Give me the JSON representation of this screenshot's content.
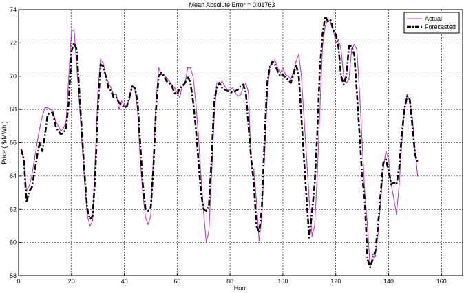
{
  "chart_data": {
    "type": "line",
    "title": "Mean Absolute Error = 0.01763",
    "xlabel": "Hour",
    "ylabel": "Price ( $/MWh )",
    "xlim": [
      0,
      168
    ],
    "ylim": [
      58,
      74
    ],
    "xticks": [
      0,
      20,
      40,
      60,
      80,
      100,
      120,
      140,
      160
    ],
    "yticks": [
      58,
      60,
      62,
      64,
      66,
      68,
      70,
      72,
      74
    ],
    "grid": true,
    "legend_position": "top-right",
    "series": [
      {
        "name": "Actual",
        "color": "#bf40bf",
        "style": "solid",
        "marker": "point",
        "points": [
          [
            1,
            65.6
          ],
          [
            2,
            64.8
          ],
          [
            3,
            63.1
          ],
          [
            4,
            63.4
          ],
          [
            5,
            64.0
          ],
          [
            6,
            65.0
          ],
          [
            7,
            66.0
          ],
          [
            8,
            66.9
          ],
          [
            9,
            67.6
          ],
          [
            10,
            68.1
          ],
          [
            11,
            68.1
          ],
          [
            12,
            68.0
          ],
          [
            13,
            67.9
          ],
          [
            14,
            67.3
          ],
          [
            15,
            67.0
          ],
          [
            16,
            66.7
          ],
          [
            17,
            66.9
          ],
          [
            18,
            67.3
          ],
          [
            19,
            70.0
          ],
          [
            20,
            72.7
          ],
          [
            21,
            72.8
          ],
          [
            22,
            70.5
          ],
          [
            23,
            68.5
          ],
          [
            24,
            66.0
          ],
          [
            25,
            63.6
          ],
          [
            26,
            61.6
          ],
          [
            27,
            61.0
          ],
          [
            28,
            61.3
          ],
          [
            29,
            65.0
          ],
          [
            30,
            69.0
          ],
          [
            31,
            71.0
          ],
          [
            32,
            70.8
          ],
          [
            33,
            70.0
          ],
          [
            34,
            69.6
          ],
          [
            35,
            69.3
          ],
          [
            36,
            68.9
          ],
          [
            37,
            68.9
          ],
          [
            38,
            68.0
          ],
          [
            39,
            68.5
          ],
          [
            40,
            68.2
          ],
          [
            41,
            68.3
          ],
          [
            42,
            68.6
          ],
          [
            43,
            69.4
          ],
          [
            44,
            69.2
          ],
          [
            45,
            68.0
          ],
          [
            46,
            65.0
          ],
          [
            47,
            63.0
          ],
          [
            48,
            61.5
          ],
          [
            49,
            61.1
          ],
          [
            50,
            61.6
          ],
          [
            51,
            65.0
          ],
          [
            52,
            68.5
          ],
          [
            53,
            70.5
          ],
          [
            54,
            70.1
          ],
          [
            55,
            70.1
          ],
          [
            56,
            69.9
          ],
          [
            57,
            69.7
          ],
          [
            58,
            69.5
          ],
          [
            59,
            69.3
          ],
          [
            60,
            69.0
          ],
          [
            61,
            68.7
          ],
          [
            62,
            69.5
          ],
          [
            63,
            69.6
          ],
          [
            64,
            70.5
          ],
          [
            65,
            70.5
          ],
          [
            66,
            70.0
          ],
          [
            67,
            68.5
          ],
          [
            68,
            66.5
          ],
          [
            69,
            64.0
          ],
          [
            70,
            61.8
          ],
          [
            71,
            60.0
          ],
          [
            72,
            60.7
          ],
          [
            73,
            64.0
          ],
          [
            74,
            67.5
          ],
          [
            75,
            69.6
          ],
          [
            76,
            69.5
          ],
          [
            77,
            69.7
          ],
          [
            78,
            69.4
          ],
          [
            79,
            69.2
          ],
          [
            80,
            69.2
          ],
          [
            81,
            69.3
          ],
          [
            82,
            69.0
          ],
          [
            83,
            68.8
          ],
          [
            84,
            68.9
          ],
          [
            85,
            69.3
          ],
          [
            86,
            69.6
          ],
          [
            87,
            69.0
          ],
          [
            88,
            64.6
          ],
          [
            89,
            64.4
          ],
          [
            90,
            62.5
          ],
          [
            91,
            60.1
          ],
          [
            92,
            61.5
          ],
          [
            93,
            65.0
          ],
          [
            94,
            68.5
          ],
          [
            95,
            70.6
          ],
          [
            96,
            70.7
          ],
          [
            97,
            71.0
          ],
          [
            98,
            70.5
          ],
          [
            99,
            70.2
          ],
          [
            100,
            70.5
          ],
          [
            101,
            70.1
          ],
          [
            102,
            70.0
          ],
          [
            103,
            69.8
          ],
          [
            104,
            70.3
          ],
          [
            105,
            70.9
          ],
          [
            106,
            71.3
          ],
          [
            107,
            70.0
          ],
          [
            108,
            67.5
          ],
          [
            109,
            65.0
          ],
          [
            110,
            62.5
          ],
          [
            111,
            60.4
          ],
          [
            112,
            61.0
          ],
          [
            113,
            64.0
          ],
          [
            114,
            68.0
          ],
          [
            115,
            71.8
          ],
          [
            116,
            73.0
          ],
          [
            117,
            73.4
          ],
          [
            118,
            73.3
          ],
          [
            119,
            72.8
          ],
          [
            120,
            72.0
          ],
          [
            121,
            72.2
          ],
          [
            122,
            71.6
          ],
          [
            123,
            70.0
          ],
          [
            124,
            69.6
          ],
          [
            125,
            69.8
          ],
          [
            126,
            71.6
          ],
          [
            127,
            71.9
          ],
          [
            128,
            71.6
          ],
          [
            129,
            69.0
          ],
          [
            130,
            66.0
          ],
          [
            131,
            63.0
          ],
          [
            132,
            61.0
          ],
          [
            133,
            58.5
          ],
          [
            134,
            59.3
          ],
          [
            135,
            59.2
          ],
          [
            136,
            60.5
          ],
          [
            137,
            62.5
          ],
          [
            138,
            64.5
          ],
          [
            139,
            65.5
          ],
          [
            140,
            65.0
          ],
          [
            141,
            63.5
          ],
          [
            142,
            62.6
          ],
          [
            143,
            61.7
          ],
          [
            144,
            63.5
          ],
          [
            145,
            66.0
          ],
          [
            146,
            68.0
          ],
          [
            147,
            68.9
          ],
          [
            148,
            68.5
          ],
          [
            149,
            67.5
          ],
          [
            150,
            65.5
          ],
          [
            151,
            64.0
          ]
        ]
      },
      {
        "name": "Forecasted",
        "color": "#000000",
        "style": "dashdot",
        "marker": "none",
        "points": [
          [
            1,
            65.6
          ],
          [
            2,
            65.0
          ],
          [
            3,
            62.4
          ],
          [
            4,
            63.1
          ],
          [
            5,
            63.3
          ],
          [
            6,
            64.2
          ],
          [
            7,
            65.2
          ],
          [
            8,
            66.0
          ],
          [
            9,
            65.5
          ],
          [
            10,
            66.5
          ],
          [
            11,
            67.7
          ],
          [
            12,
            67.8
          ],
          [
            13,
            67.8
          ],
          [
            14,
            67.0
          ],
          [
            15,
            66.7
          ],
          [
            16,
            66.5
          ],
          [
            17,
            66.6
          ],
          [
            18,
            66.9
          ],
          [
            19,
            68.5
          ],
          [
            20,
            71.5
          ],
          [
            21,
            72.0
          ],
          [
            22,
            71.6
          ],
          [
            23,
            69.0
          ],
          [
            24,
            66.5
          ],
          [
            25,
            64.0
          ],
          [
            26,
            62.0
          ],
          [
            27,
            61.4
          ],
          [
            28,
            61.6
          ],
          [
            29,
            64.0
          ],
          [
            30,
            68.0
          ],
          [
            31,
            70.7
          ],
          [
            32,
            70.6
          ],
          [
            33,
            70.0
          ],
          [
            34,
            69.3
          ],
          [
            35,
            69.1
          ],
          [
            36,
            68.7
          ],
          [
            37,
            68.7
          ],
          [
            38,
            68.4
          ],
          [
            39,
            68.3
          ],
          [
            40,
            68.1
          ],
          [
            41,
            68.2
          ],
          [
            42,
            68.8
          ],
          [
            43,
            69.4
          ],
          [
            44,
            69.3
          ],
          [
            45,
            68.5
          ],
          [
            46,
            66.0
          ],
          [
            47,
            63.5
          ],
          [
            48,
            62.0
          ],
          [
            49,
            61.9
          ],
          [
            50,
            62.1
          ],
          [
            51,
            64.5
          ],
          [
            52,
            68.0
          ],
          [
            53,
            70.0
          ],
          [
            54,
            70.2
          ],
          [
            55,
            70.0
          ],
          [
            56,
            69.7
          ],
          [
            57,
            69.6
          ],
          [
            58,
            69.4
          ],
          [
            59,
            69.0
          ],
          [
            60,
            68.9
          ],
          [
            61,
            69.3
          ],
          [
            62,
            69.4
          ],
          [
            63,
            69.6
          ],
          [
            64,
            70.0
          ],
          [
            65,
            69.6
          ],
          [
            66,
            68.5
          ],
          [
            67,
            67.0
          ],
          [
            68,
            65.0
          ],
          [
            69,
            63.0
          ],
          [
            70,
            62.0
          ],
          [
            71,
            61.9
          ],
          [
            72,
            62.2
          ],
          [
            73,
            65.0
          ],
          [
            74,
            68.5
          ],
          [
            75,
            69.3
          ],
          [
            76,
            69.6
          ],
          [
            77,
            69.3
          ],
          [
            78,
            69.2
          ],
          [
            79,
            69.1
          ],
          [
            80,
            69.1
          ],
          [
            81,
            69.0
          ],
          [
            82,
            69.1
          ],
          [
            83,
            69.2
          ],
          [
            84,
            69.4
          ],
          [
            85,
            69.5
          ],
          [
            86,
            69.0
          ],
          [
            87,
            67.0
          ],
          [
            88,
            65.0
          ],
          [
            89,
            63.6
          ],
          [
            90,
            61.0
          ],
          [
            91,
            60.6
          ],
          [
            92,
            62.0
          ],
          [
            93,
            66.0
          ],
          [
            94,
            69.5
          ],
          [
            95,
            70.5
          ],
          [
            96,
            70.9
          ],
          [
            97,
            70.7
          ],
          [
            98,
            70.3
          ],
          [
            99,
            70.0
          ],
          [
            100,
            70.1
          ],
          [
            101,
            69.9
          ],
          [
            102,
            69.8
          ],
          [
            103,
            69.6
          ],
          [
            104,
            70.1
          ],
          [
            105,
            70.7
          ],
          [
            106,
            70.0
          ],
          [
            107,
            67.5
          ],
          [
            108,
            65.0
          ],
          [
            109,
            62.5
          ],
          [
            110,
            60.3
          ],
          [
            111,
            61.8
          ],
          [
            112,
            63.5
          ],
          [
            113,
            66.5
          ],
          [
            114,
            70.5
          ],
          [
            115,
            72.5
          ],
          [
            116,
            73.6
          ],
          [
            117,
            73.3
          ],
          [
            118,
            73.4
          ],
          [
            119,
            72.8
          ],
          [
            120,
            72.5
          ],
          [
            121,
            71.8
          ],
          [
            122,
            70.0
          ],
          [
            123,
            69.5
          ],
          [
            124,
            70.0
          ],
          [
            125,
            71.8
          ],
          [
            126,
            71.8
          ],
          [
            127,
            71.3
          ],
          [
            128,
            69.0
          ],
          [
            129,
            66.5
          ],
          [
            130,
            64.0
          ],
          [
            131,
            62.5
          ],
          [
            132,
            59.0
          ],
          [
            133,
            58.5
          ],
          [
            134,
            59.0
          ],
          [
            135,
            59.5
          ],
          [
            136,
            61.0
          ],
          [
            137,
            63.0
          ],
          [
            138,
            64.8
          ],
          [
            139,
            65.0
          ],
          [
            140,
            64.3
          ],
          [
            141,
            63.5
          ],
          [
            142,
            63.6
          ],
          [
            143,
            63.5
          ],
          [
            144,
            64.5
          ],
          [
            145,
            66.5
          ],
          [
            146,
            68.0
          ],
          [
            147,
            68.8
          ],
          [
            148,
            68.6
          ],
          [
            149,
            67.0
          ],
          [
            150,
            65.3
          ],
          [
            151,
            64.8
          ]
        ]
      }
    ]
  }
}
